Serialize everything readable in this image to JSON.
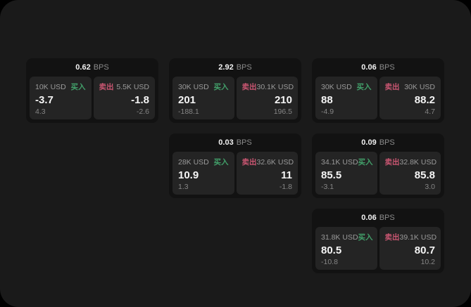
{
  "colors": {
    "page_bg": "#1a1a1a",
    "card_bg": "#121212",
    "panel_bg": "#242424",
    "buy": "#42a06a",
    "sell": "#ca5672"
  },
  "labels": {
    "bps_suffix": "BPS",
    "buy": "买入",
    "sell": "卖出"
  },
  "cards": [
    {
      "bps": "0.62",
      "buy": {
        "amount": "10K USD",
        "value": "-3.7",
        "sub": "4.3"
      },
      "sell": {
        "amount": "5.5K USD",
        "value": "-1.8",
        "sub": "-2.6"
      }
    },
    {
      "bps": "2.92",
      "buy": {
        "amount": "30K USD",
        "value": "201",
        "sub": "-188.1"
      },
      "sell": {
        "amount": "30.1K USD",
        "value": "210",
        "sub": "196.5"
      }
    },
    {
      "bps": "0.06",
      "buy": {
        "amount": "30K USD",
        "value": "88",
        "sub": "-4.9"
      },
      "sell": {
        "amount": "30K USD",
        "value": "88.2",
        "sub": "4.7"
      }
    },
    {
      "bps": "0.03",
      "buy": {
        "amount": "28K USD",
        "value": "10.9",
        "sub": "1.3"
      },
      "sell": {
        "amount": "32.6K USD",
        "value": "11",
        "sub": "-1.8"
      }
    },
    {
      "bps": "0.09",
      "buy": {
        "amount": "34.1K USD",
        "value": "85.5",
        "sub": "-3.1"
      },
      "sell": {
        "amount": "32.8K USD",
        "value": "85.8",
        "sub": "3.0"
      }
    },
    {
      "bps": "0.06",
      "buy": {
        "amount": "31.8K USD",
        "value": "80.5",
        "sub": "-10.8"
      },
      "sell": {
        "amount": "39.1K USD",
        "value": "80.7",
        "sub": "10.2"
      }
    }
  ]
}
